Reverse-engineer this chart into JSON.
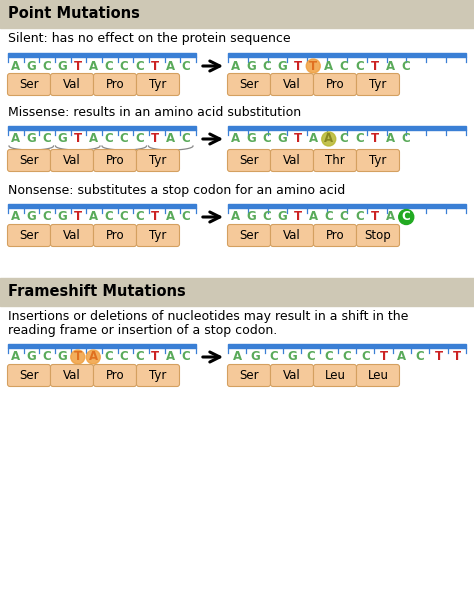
{
  "title_point": "Point Mutations",
  "title_frameshift": "Frameshift Mutations",
  "bg_header": "#cec8b5",
  "bg_white": "#ffffff",
  "codon_box_color": "#f5c99a",
  "codon_box_edge": "#d4a060",
  "bar_color": "#3a7fd5",
  "lc_A": "#5aaa5a",
  "lc_G": "#5aaa5a",
  "lc_C": "#5aaa5a",
  "lc_T": "#cc2222",
  "highlight_orange_fg": "#e07020",
  "highlight_orange_bg": "#f0a040",
  "highlight_olive_fg": "#888820",
  "highlight_olive_bg": "#b8b830",
  "highlight_green": "#22aa22",
  "silent_desc": "Silent: has no effect on the protein sequence",
  "missense_desc": "Missense: results in an amino acid substitution",
  "nonsense_desc": "Nonsense: substitutes a stop codon for an amino acid",
  "frameshift_line1": "Insertions or deletions of nucleotides may result in a shift in the",
  "frameshift_line2": "reading frame or insertion of a stop codon.",
  "seq_before": [
    "A",
    "G",
    "C",
    "G",
    "T",
    "A",
    "C",
    "C",
    "C",
    "T",
    "A",
    "C"
  ],
  "seq_silent_after": [
    "A",
    "G",
    "C",
    "G",
    "T",
    "T",
    "A",
    "C",
    "C",
    "T",
    "A",
    "C"
  ],
  "seq_missense_after": [
    "A",
    "G",
    "C",
    "G",
    "T",
    "A",
    "A",
    "C",
    "C",
    "T",
    "A",
    "C"
  ],
  "seq_nonsense_after": [
    "A",
    "G",
    "C",
    "G",
    "T",
    "A",
    "C",
    "C",
    "C",
    "T",
    "A",
    "C"
  ],
  "seq_frameshift_after": [
    "A",
    "G",
    "C",
    "G",
    "C",
    "C",
    "C",
    "C",
    "T",
    "A",
    "C",
    "T",
    "T"
  ],
  "silent_changed_idx": [
    5
  ],
  "missense_changed_idx": [
    6
  ],
  "nonsense_circle_idx": 11,
  "frameshift_orange_idxs": [
    4,
    5
  ],
  "silent_codons_before": [
    "Ser",
    "Val",
    "Pro",
    "Tyr"
  ],
  "silent_codons_after": [
    "Ser",
    "Val",
    "Pro",
    "Tyr"
  ],
  "missense_codons_before": [
    "Ser",
    "Val",
    "Pro",
    "Tyr"
  ],
  "missense_codons_after": [
    "Ser",
    "Val",
    "Thr",
    "Tyr"
  ],
  "nonsense_codons_before": [
    "Ser",
    "Val",
    "Pro",
    "Tyr"
  ],
  "nonsense_codons_after": [
    "Ser",
    "Val",
    "Pro",
    "Stop"
  ],
  "frameshift_codons_before": [
    "Ser",
    "Val",
    "Pro",
    "Tyr"
  ],
  "frameshift_codons_after": [
    "Ser",
    "Val",
    "Leu",
    "Leu"
  ]
}
